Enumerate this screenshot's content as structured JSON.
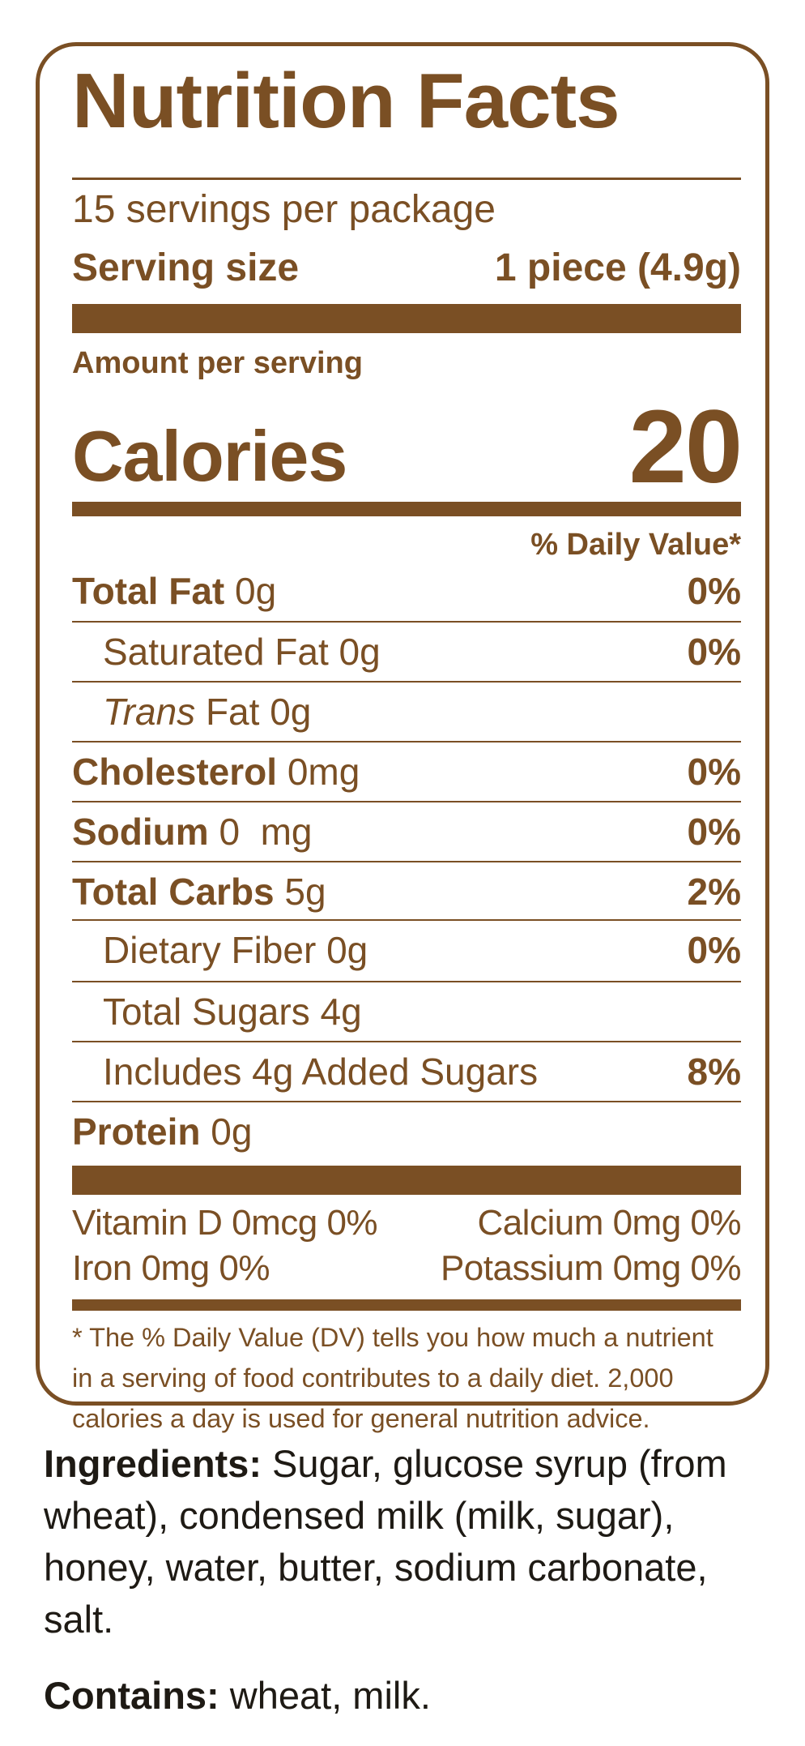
{
  "colors": {
    "label": "#7a4f24",
    "text_dark": "#1e1a14",
    "background": "#ffffff"
  },
  "label": {
    "title": "Nutrition Facts",
    "servings_per_package": "15 servings per package",
    "serving_size_label": "Serving size",
    "serving_size_value": "1 piece (4.9g)",
    "amount_per_serving": "Amount per serving",
    "calories_label": "Calories",
    "calories_value": "20",
    "daily_value_header": "% Daily Value*",
    "nutrients": [
      {
        "name": "Total Fat",
        "amount": "0g",
        "dv": "0%"
      },
      {
        "name": "Saturated Fat",
        "amount": "0g",
        "dv": "0%"
      },
      {
        "name": "Trans",
        "amount": "Fat 0g",
        "dv": ""
      },
      {
        "name": "Cholesterol",
        "amount": "0mg",
        "dv": "0%"
      },
      {
        "name": "Sodium",
        "amount": "0  mg",
        "dv": "0%"
      },
      {
        "name": "Total Carbs",
        "amount": "5g",
        "dv": "2%"
      },
      {
        "name": "Dietary Fiber",
        "amount": "0g",
        "dv": "0%"
      },
      {
        "name": "Total Sugars",
        "amount": "4g",
        "dv": ""
      },
      {
        "name": "Includes 4g Added Sugars",
        "amount": "",
        "dv": "8%"
      },
      {
        "name": "Protein",
        "amount": "0g",
        "dv": ""
      }
    ],
    "vitamins": {
      "vitamin_d": "Vitamin D 0mcg 0%",
      "calcium": "Calcium 0mg 0%",
      "iron": "Iron 0mg 0%",
      "potassium": "Potassium 0mg 0%"
    },
    "footnote": "* The % Daily Value (DV) tells you how much a nutrient in a serving of food contributes to a daily diet. 2,000 calories a day is used for general nutrition advice."
  },
  "ingredients": {
    "heading": "Ingredients:",
    "text": " Sugar, glucose syrup (from wheat), condensed milk (milk, sugar), honey, water, butter, sodium carbonate, salt."
  },
  "contains": {
    "heading": "Contains:",
    "text": " wheat, milk."
  }
}
